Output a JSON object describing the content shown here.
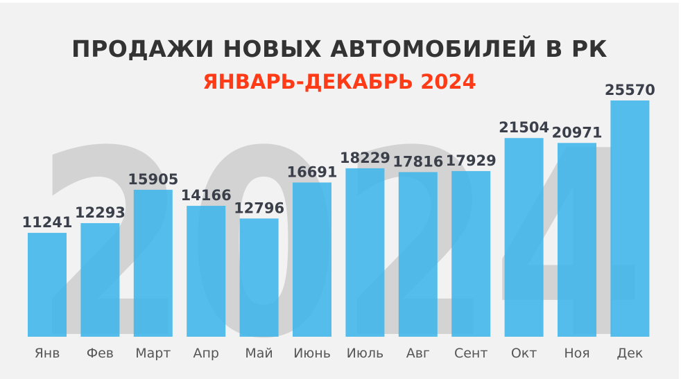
{
  "chart_data": {
    "type": "bar",
    "title": "ПРОДАЖИ НОВЫХ АВТОМОБИЛЕЙ В РК",
    "subtitle": "ЯНВАРЬ-ДЕКАБРЬ 2024",
    "watermark": "2024",
    "categories": [
      "Янв",
      "Фев",
      "Март",
      "Апр",
      "Май",
      "Июнь",
      "Июль",
      "Авг",
      "Сент",
      "Окт",
      "Ноя",
      "Дек"
    ],
    "values": [
      11241,
      12293,
      15905,
      14166,
      12796,
      16691,
      18229,
      17816,
      17929,
      21504,
      20971,
      25570
    ],
    "xlabel": "",
    "ylabel": "",
    "ylim": [
      0,
      25570
    ],
    "grid": false,
    "bar_color": "#38b4eb",
    "title_color": "#333333",
    "subtitle_color": "#ff3b17"
  }
}
